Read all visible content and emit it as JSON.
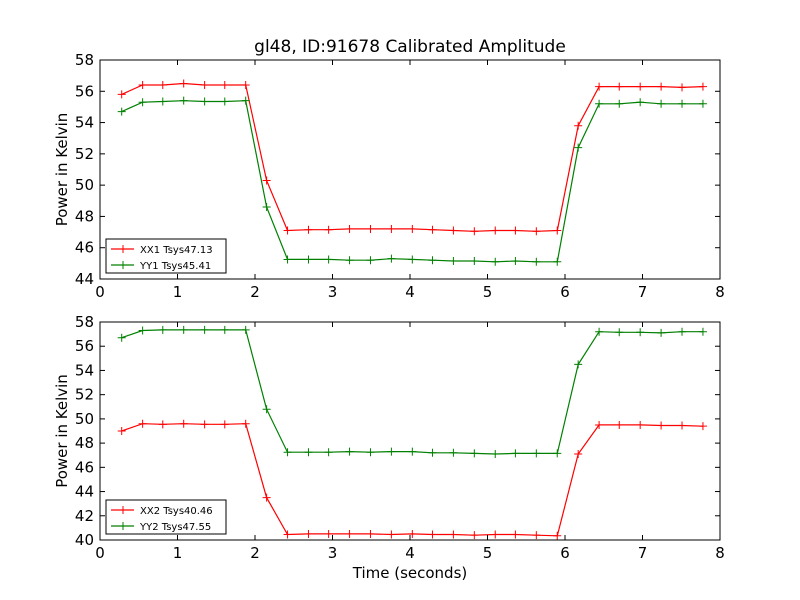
{
  "figure_title": "gl48, ID:91678 Calibrated Amplitude",
  "chart_data": [
    {
      "type": "line",
      "title": "",
      "xlabel": "",
      "ylabel": "Power in Kelvin",
      "xlim": [
        0,
        8
      ],
      "ylim": [
        44,
        58
      ],
      "xticks": [
        "0",
        "1",
        "2",
        "3",
        "4",
        "5",
        "6",
        "7",
        "8"
      ],
      "yticks": [
        "44",
        "46",
        "48",
        "50",
        "52",
        "54",
        "56",
        "58"
      ],
      "grid": false,
      "legend_position": "lower-left",
      "x": [
        0.28,
        0.55,
        0.81,
        1.08,
        1.35,
        1.61,
        1.88,
        2.15,
        2.42,
        2.69,
        2.95,
        3.22,
        3.49,
        3.76,
        4.03,
        4.29,
        4.56,
        4.83,
        5.1,
        5.36,
        5.63,
        5.9,
        6.17,
        6.44,
        6.7,
        6.97,
        7.24,
        7.51,
        7.78
      ],
      "series": [
        {
          "name": "XX1 Tsys47.13",
          "color": "#ff0000",
          "values": [
            55.8,
            56.4,
            56.4,
            56.5,
            56.4,
            56.4,
            56.4,
            50.3,
            47.1,
            47.15,
            47.15,
            47.2,
            47.2,
            47.2,
            47.2,
            47.15,
            47.1,
            47.05,
            47.1,
            47.1,
            47.05,
            47.1,
            53.8,
            56.3,
            56.3,
            56.3,
            56.3,
            56.25,
            56.3
          ]
        },
        {
          "name": "YY1 Tsys45.41",
          "color": "#008000",
          "values": [
            54.7,
            55.3,
            55.35,
            55.4,
            55.35,
            55.35,
            55.4,
            48.6,
            45.25,
            45.25,
            45.25,
            45.2,
            45.2,
            45.3,
            45.25,
            45.2,
            45.15,
            45.15,
            45.1,
            45.15,
            45.1,
            45.1,
            52.4,
            55.2,
            55.2,
            55.3,
            55.2,
            55.2,
            55.2
          ]
        }
      ]
    },
    {
      "type": "line",
      "title": "",
      "xlabel": "Time (seconds)",
      "ylabel": "Power in Kelvin",
      "xlim": [
        0,
        8
      ],
      "ylim": [
        40,
        58
      ],
      "xticks": [
        "0",
        "1",
        "2",
        "3",
        "4",
        "5",
        "6",
        "7",
        "8"
      ],
      "yticks": [
        "40",
        "42",
        "44",
        "46",
        "48",
        "50",
        "52",
        "54",
        "56",
        "58"
      ],
      "grid": false,
      "legend_position": "lower-left",
      "x": [
        0.28,
        0.55,
        0.81,
        1.08,
        1.35,
        1.61,
        1.88,
        2.15,
        2.42,
        2.69,
        2.95,
        3.22,
        3.49,
        3.76,
        4.03,
        4.29,
        4.56,
        4.83,
        5.1,
        5.36,
        5.63,
        5.9,
        6.17,
        6.44,
        6.7,
        6.97,
        7.24,
        7.51,
        7.78
      ],
      "series": [
        {
          "name": "XX2 Tsys40.46",
          "color": "#ff0000",
          "values": [
            49.0,
            49.6,
            49.55,
            49.6,
            49.55,
            49.55,
            49.6,
            43.5,
            40.45,
            40.5,
            40.5,
            40.5,
            40.5,
            40.45,
            40.5,
            40.45,
            40.45,
            40.4,
            40.45,
            40.45,
            40.4,
            40.35,
            47.1,
            49.5,
            49.5,
            49.5,
            49.45,
            49.45,
            49.4
          ]
        },
        {
          "name": "YY2 Tsys47.55",
          "color": "#008000",
          "values": [
            56.7,
            57.3,
            57.35,
            57.35,
            57.35,
            57.35,
            57.35,
            50.8,
            47.25,
            47.25,
            47.25,
            47.3,
            47.25,
            47.3,
            47.3,
            47.2,
            47.2,
            47.15,
            47.1,
            47.15,
            47.15,
            47.15,
            54.5,
            57.2,
            57.15,
            57.15,
            57.1,
            57.2,
            57.2
          ]
        }
      ]
    }
  ]
}
